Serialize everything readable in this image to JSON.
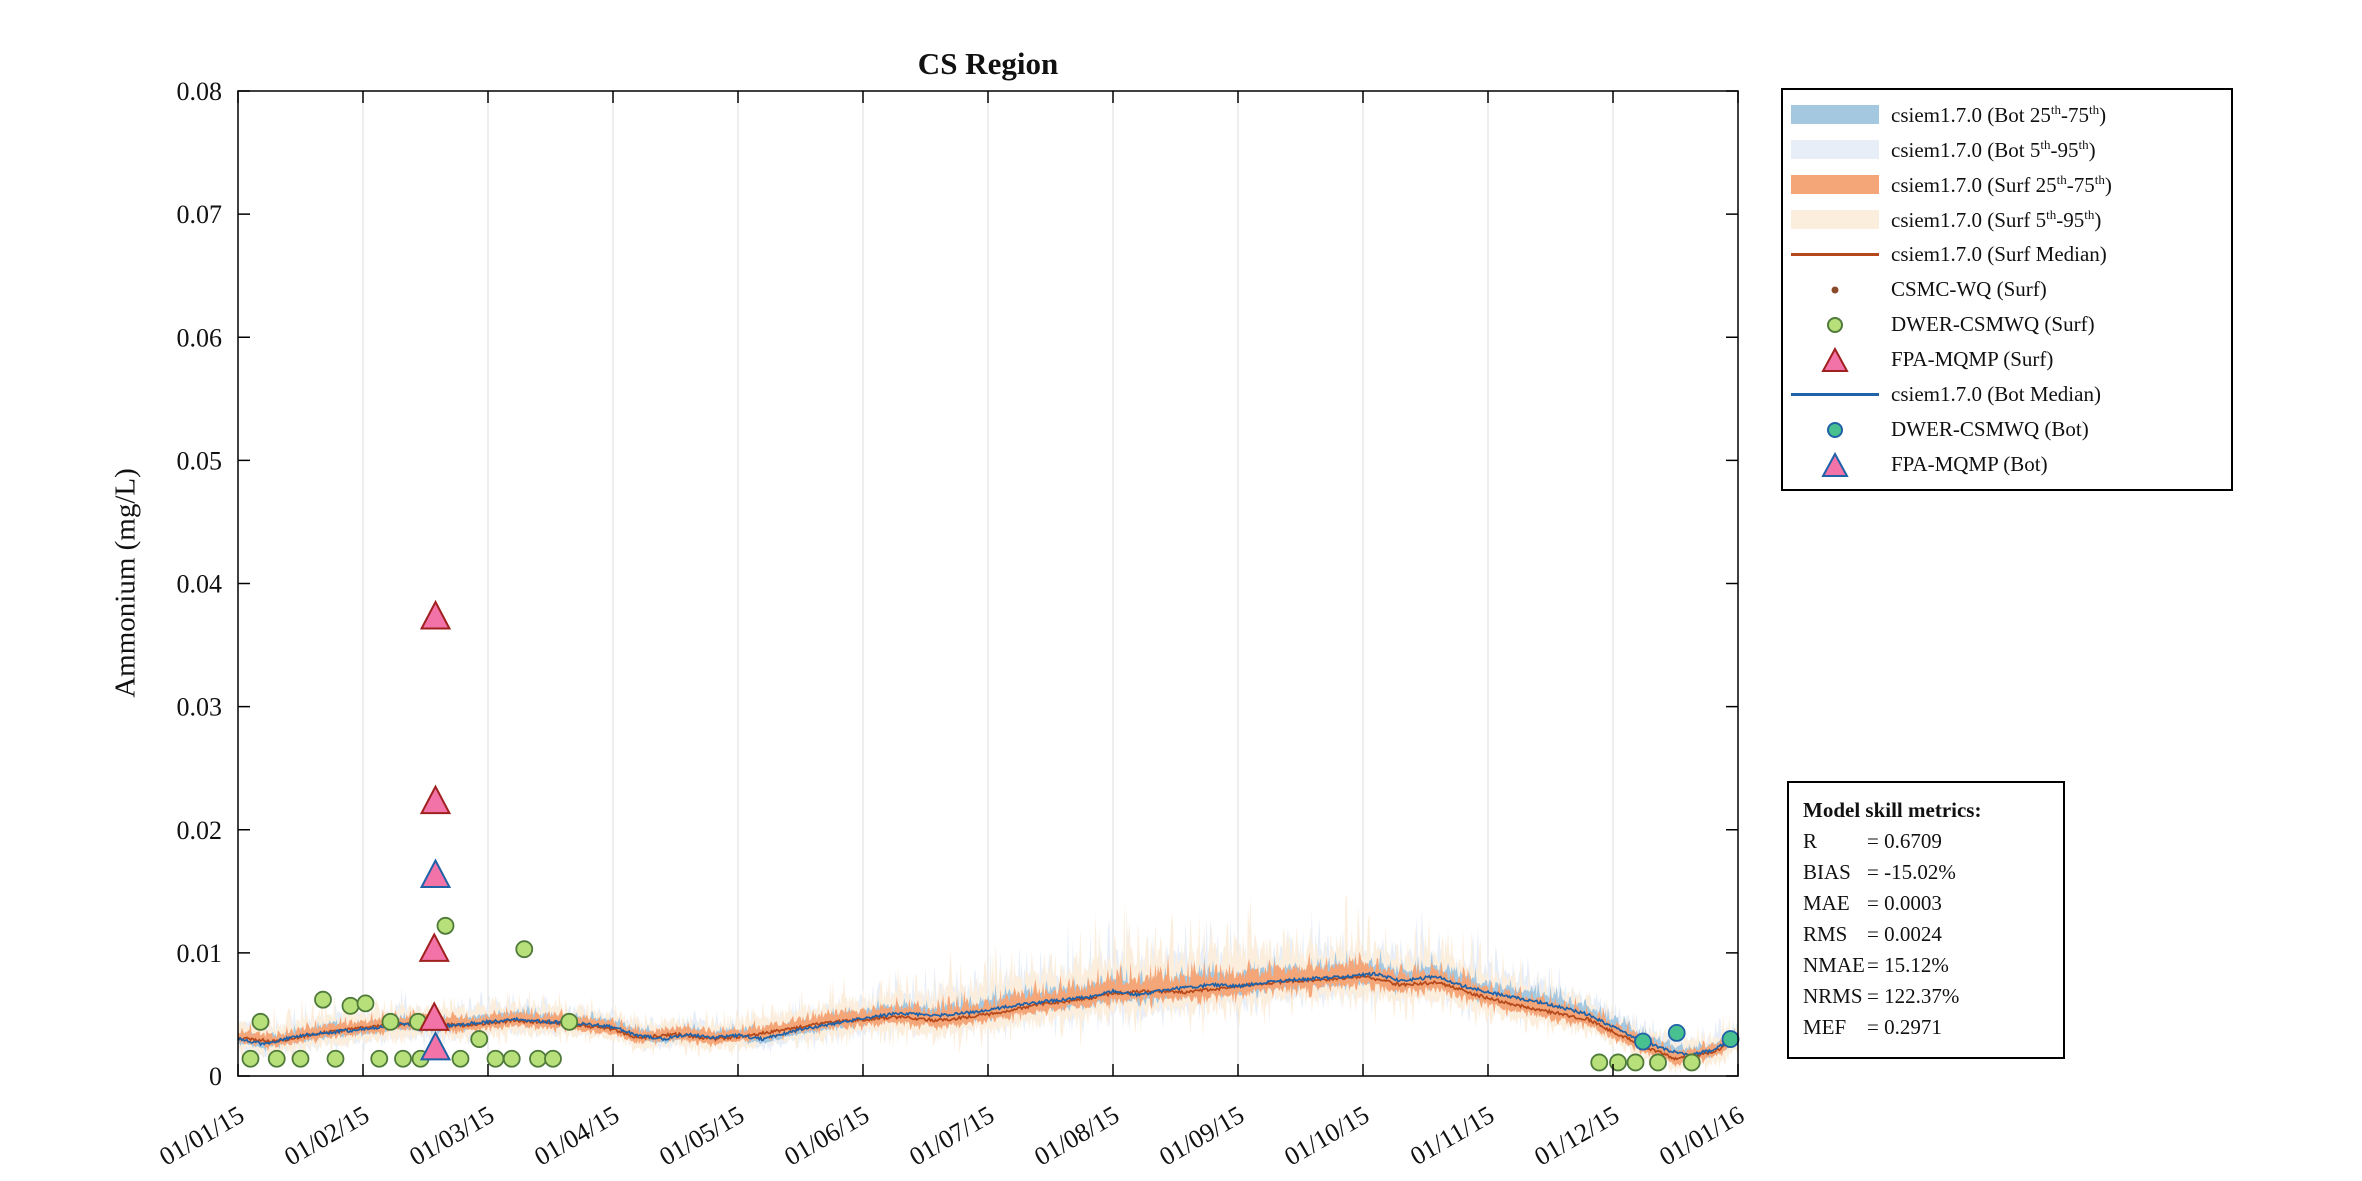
{
  "figure": {
    "title": "CS Region",
    "ylabel": "Ammonium (mg/L)"
  },
  "axes": {
    "ytick_labels": [
      "0",
      "0.01",
      "0.02",
      "0.03",
      "0.04",
      "0.05",
      "0.06",
      "0.07",
      "0.08"
    ],
    "ytick_values": [
      0,
      0.01,
      0.02,
      0.03,
      0.04,
      0.05,
      0.06,
      0.07,
      0.08
    ],
    "xtick_labels": [
      "01/01/15",
      "01/02/15",
      "01/03/15",
      "01/04/15",
      "01/05/15",
      "01/06/15",
      "01/07/15",
      "01/08/15",
      "01/09/15",
      "01/10/15",
      "01/11/15",
      "01/12/15",
      "01/01/16"
    ],
    "grid": "vertical-only",
    "grid_color": "#dcdcdc"
  },
  "legend": {
    "entries": [
      {
        "label": "csiem1.7.0 (Bot 25^th^-75^th^)",
        "swatch": "band",
        "color": "#a5c8e1"
      },
      {
        "label": "csiem1.7.0 (Bot 5^th^-95^th^)",
        "swatch": "band",
        "color": "#e7eef8"
      },
      {
        "label": "csiem1.7.0 (Surf 25^th^-75^th^)",
        "swatch": "band",
        "color": "#f4a678"
      },
      {
        "label": "csiem1.7.0 (Surf 5^th^-95^th^)",
        "swatch": "band",
        "color": "#fceedd"
      },
      {
        "label": "csiem1.7.0 (Surf Median)",
        "swatch": "line",
        "color": "#b5491c"
      },
      {
        "label": "CSMC-WQ (Surf)",
        "swatch": "dot",
        "fill": "#8b4a2a",
        "stroke": "#8b4a2a"
      },
      {
        "label": "DWER-CSMWQ (Surf)",
        "swatch": "circle",
        "fill": "#b7e07a",
        "stroke": "#4f7a3a"
      },
      {
        "label": "FPA-MQMP (Surf)",
        "swatch": "triangle",
        "fill": "#f273a8",
        "stroke": "#a02020"
      },
      {
        "label": "csiem1.7.0 (Bot Median)",
        "swatch": "line",
        "color": "#1f62a8"
      },
      {
        "label": "DWER-CSMWQ (Bot)",
        "swatch": "circle",
        "fill": "#49c08f",
        "stroke": "#1f62a8"
      },
      {
        "label": "FPA-MQMP (Bot)",
        "swatch": "triangle",
        "fill": "#f273a8",
        "stroke": "#1f62a8"
      }
    ]
  },
  "metrics": {
    "title": "Model skill metrics:",
    "lines": [
      {
        "label": "R",
        "value": "0.6709"
      },
      {
        "label": "BIAS",
        "value": "-15.02%"
      },
      {
        "label": "MAE",
        "value": "0.0003"
      },
      {
        "label": "RMS",
        "value": "0.0024"
      },
      {
        "label": "NMAE",
        "value": "15.12%"
      },
      {
        "label": "NRMS",
        "value": "122.37%"
      },
      {
        "label": "MEF",
        "value": "0.2971"
      }
    ]
  },
  "chart_data": {
    "type": "line",
    "title": "CS Region",
    "xlabel": "",
    "ylabel": "Ammonium (mg/L)",
    "ylim": [
      0,
      0.08
    ],
    "xlim_months": [
      0,
      12
    ],
    "x_unit": "months since 01/01/15",
    "xtick_labels": [
      "01/01/15",
      "01/02/15",
      "01/03/15",
      "01/04/15",
      "01/05/15",
      "01/06/15",
      "01/07/15",
      "01/08/15",
      "01/09/15",
      "01/10/15",
      "01/11/15",
      "01/12/15",
      "01/01/16"
    ],
    "legend_position": "outside-top-right",
    "series": [
      {
        "name": "csiem1.7.0 (Surf Median)",
        "key": "surf",
        "color": "#b5491c",
        "points": [
          [
            0,
            0.0031
          ],
          [
            0.3,
            0.0028
          ],
          [
            0.6,
            0.0034
          ],
          [
            1.0,
            0.0039
          ],
          [
            1.4,
            0.0043
          ],
          [
            1.8,
            0.0041
          ],
          [
            2.2,
            0.0045
          ],
          [
            2.6,
            0.0043
          ],
          [
            3.0,
            0.0038
          ],
          [
            3.2,
            0.0031
          ],
          [
            3.5,
            0.0034
          ],
          [
            3.8,
            0.003
          ],
          [
            4.1,
            0.0033
          ],
          [
            4.4,
            0.0038
          ],
          [
            4.7,
            0.0043
          ],
          [
            5.0,
            0.0046
          ],
          [
            5.3,
            0.0048
          ],
          [
            5.6,
            0.0045
          ],
          [
            6.0,
            0.005
          ],
          [
            6.4,
            0.0058
          ],
          [
            6.8,
            0.0063
          ],
          [
            7.0,
            0.0067
          ],
          [
            7.3,
            0.0069
          ],
          [
            7.6,
            0.0068
          ],
          [
            8.0,
            0.0073
          ],
          [
            8.4,
            0.0077
          ],
          [
            8.8,
            0.0079
          ],
          [
            9.0,
            0.0081
          ],
          [
            9.3,
            0.0074
          ],
          [
            9.6,
            0.0076
          ],
          [
            9.9,
            0.0066
          ],
          [
            10.2,
            0.0058
          ],
          [
            10.5,
            0.0052
          ],
          [
            10.8,
            0.0046
          ],
          [
            11.0,
            0.0036
          ],
          [
            11.3,
            0.0022
          ],
          [
            11.5,
            0.0014
          ],
          [
            11.8,
            0.0019
          ],
          [
            12.0,
            0.003
          ]
        ]
      },
      {
        "name": "csiem1.7.0 (Bot Median)",
        "key": "bot",
        "color": "#1f62a8",
        "points": [
          [
            0,
            0.003
          ],
          [
            0.2,
            0.0026
          ],
          [
            0.5,
            0.0033
          ],
          [
            0.8,
            0.0036
          ],
          [
            1.0,
            0.0038
          ],
          [
            1.3,
            0.0042
          ],
          [
            1.6,
            0.004
          ],
          [
            1.9,
            0.0043
          ],
          [
            2.2,
            0.0046
          ],
          [
            2.5,
            0.0044
          ],
          [
            2.8,
            0.0042
          ],
          [
            3.0,
            0.004
          ],
          [
            3.2,
            0.0033
          ],
          [
            3.4,
            0.003
          ],
          [
            3.6,
            0.0034
          ],
          [
            3.8,
            0.0031
          ],
          [
            4.0,
            0.0033
          ],
          [
            4.2,
            0.003
          ],
          [
            4.5,
            0.0038
          ],
          [
            4.8,
            0.0043
          ],
          [
            5.0,
            0.0047
          ],
          [
            5.3,
            0.0051
          ],
          [
            5.6,
            0.0049
          ],
          [
            5.9,
            0.0052
          ],
          [
            6.2,
            0.0057
          ],
          [
            6.5,
            0.0061
          ],
          [
            6.8,
            0.0064
          ],
          [
            7.0,
            0.0069
          ],
          [
            7.2,
            0.0066
          ],
          [
            7.5,
            0.0071
          ],
          [
            7.8,
            0.0074
          ],
          [
            8.0,
            0.0073
          ],
          [
            8.3,
            0.0077
          ],
          [
            8.6,
            0.0079
          ],
          [
            8.9,
            0.0081
          ],
          [
            9.1,
            0.0083
          ],
          [
            9.3,
            0.0077
          ],
          [
            9.6,
            0.0081
          ],
          [
            9.8,
            0.0073
          ],
          [
            10.0,
            0.0068
          ],
          [
            10.2,
            0.0064
          ],
          [
            10.5,
            0.0058
          ],
          [
            10.8,
            0.005
          ],
          [
            11.0,
            0.004
          ],
          [
            11.2,
            0.003
          ],
          [
            11.4,
            0.0022
          ],
          [
            11.6,
            0.0017
          ],
          [
            11.8,
            0.0021
          ],
          [
            12.0,
            0.0032
          ]
        ]
      }
    ],
    "bands": [
      {
        "name": "csiem1.7.0 (Bot 5th-95th)",
        "base": "bot",
        "color": "#e7eef8",
        "offsets": [
          [
            0,
            0.0012,
            0.0014,
            0.0007
          ],
          [
            1,
            0.0013,
            0.0016,
            0.0007
          ],
          [
            2,
            0.0013,
            0.0016,
            0.0007
          ],
          [
            3,
            0.001,
            0.0013,
            0.0005
          ],
          [
            4,
            0.001,
            0.0014,
            0.0007
          ],
          [
            5,
            0.0013,
            0.0018,
            0.0011
          ],
          [
            6,
            0.0016,
            0.0026,
            0.0016
          ],
          [
            7,
            0.0018,
            0.0032,
            0.002
          ],
          [
            8,
            0.0018,
            0.0032,
            0.002
          ],
          [
            9,
            0.0018,
            0.0028,
            0.0018
          ],
          [
            10,
            0.0016,
            0.0024,
            0.0014
          ],
          [
            11,
            0.0011,
            0.0014,
            0.0007
          ],
          [
            12,
            0.0011,
            0.0014,
            0.0007
          ]
        ]
      },
      {
        "name": "csiem1.7.0 (Surf 5th-95th)",
        "base": "surf",
        "color": "#fceedd",
        "offsets": [
          [
            0,
            0.0013,
            0.0016,
            0.0009
          ],
          [
            1,
            0.0014,
            0.0018,
            0.0009
          ],
          [
            2,
            0.0014,
            0.0018,
            0.0009
          ],
          [
            3,
            0.0011,
            0.0014,
            0.0006
          ],
          [
            4,
            0.0011,
            0.0016,
            0.0008
          ],
          [
            5,
            0.0014,
            0.0022,
            0.0013
          ],
          [
            6,
            0.0017,
            0.003,
            0.0019
          ],
          [
            7,
            0.0019,
            0.0038,
            0.0024
          ],
          [
            8,
            0.0019,
            0.0038,
            0.0024
          ],
          [
            9,
            0.0019,
            0.0032,
            0.0021
          ],
          [
            10,
            0.0017,
            0.0026,
            0.0016
          ],
          [
            11,
            0.0012,
            0.0015,
            0.0008
          ],
          [
            12,
            0.0012,
            0.0015,
            0.0008
          ]
        ]
      },
      {
        "name": "csiem1.7.0 (Bot 25th-75th)",
        "base": "bot",
        "color": "#a5c8e1",
        "offsets": [
          [
            0,
            0.0005,
            0.0006,
            0.0003
          ],
          [
            2,
            0.0005,
            0.0007,
            0.0003
          ],
          [
            4,
            0.0004,
            0.0006,
            0.0003
          ],
          [
            6,
            0.0007,
            0.0011,
            0.0006
          ],
          [
            8,
            0.0008,
            0.0013,
            0.0008
          ],
          [
            10,
            0.0007,
            0.001,
            0.0006
          ],
          [
            12,
            0.0005,
            0.0006,
            0.0003
          ]
        ]
      },
      {
        "name": "csiem1.7.0 (Surf 25th-75th)",
        "base": "surf",
        "color": "#f4a678",
        "offsets": [
          [
            0,
            0.0005,
            0.0007,
            0.0004
          ],
          [
            2,
            0.0006,
            0.0008,
            0.0004
          ],
          [
            4,
            0.0005,
            0.0007,
            0.0003
          ],
          [
            6,
            0.0007,
            0.0012,
            0.0007
          ],
          [
            8,
            0.0008,
            0.0015,
            0.0009
          ],
          [
            10,
            0.0007,
            0.0011,
            0.0006
          ],
          [
            12,
            0.0005,
            0.0007,
            0.0004
          ]
        ]
      }
    ],
    "scatter": [
      {
        "name": "DWER-CSMWQ (Surf)",
        "marker": "circle",
        "fill": "#b7e07a",
        "stroke": "#4f7a3a",
        "size": 8,
        "points": [
          [
            0.1,
            0.0014
          ],
          [
            0.18,
            0.0044
          ],
          [
            0.31,
            0.0014
          ],
          [
            0.5,
            0.0014
          ],
          [
            0.68,
            0.0062
          ],
          [
            0.78,
            0.0014
          ],
          [
            0.9,
            0.0057
          ],
          [
            1.02,
            0.0059
          ],
          [
            1.13,
            0.0014
          ],
          [
            1.22,
            0.0044
          ],
          [
            1.32,
            0.0014
          ],
          [
            1.44,
            0.0044
          ],
          [
            1.46,
            0.0014
          ],
          [
            1.66,
            0.0122
          ],
          [
            1.78,
            0.0014
          ],
          [
            1.93,
            0.003
          ],
          [
            2.06,
            0.0014
          ],
          [
            2.19,
            0.0014
          ],
          [
            2.29,
            0.0103
          ],
          [
            2.4,
            0.0014
          ],
          [
            2.52,
            0.0014
          ],
          [
            2.65,
            0.0044
          ],
          [
            10.89,
            0.0011
          ],
          [
            11.04,
            0.0011
          ],
          [
            11.18,
            0.0011
          ],
          [
            11.36,
            0.0011
          ],
          [
            11.63,
            0.0011
          ]
        ]
      },
      {
        "name": "DWER-CSMWQ (Bot)",
        "marker": "circle",
        "fill": "#49c08f",
        "stroke": "#1f62a8",
        "size": 8,
        "points": [
          [
            11.24,
            0.0028
          ],
          [
            11.51,
            0.0035
          ],
          [
            11.94,
            0.003
          ]
        ]
      },
      {
        "name": "FPA-MQMP (Surf)",
        "marker": "triangle",
        "fill": "#f273a8",
        "stroke": "#a02020",
        "size": 15,
        "points": [
          [
            1.58,
            0.0372
          ],
          [
            1.58,
            0.0222
          ],
          [
            1.57,
            0.0102
          ],
          [
            1.57,
            0.0046
          ]
        ]
      },
      {
        "name": "FPA-MQMP (Bot)",
        "marker": "triangle",
        "fill": "#f273a8",
        "stroke": "#1f62a8",
        "size": 15,
        "points": [
          [
            1.58,
            0.0162
          ],
          [
            1.58,
            0.0022
          ]
        ]
      },
      {
        "name": "CSMC-WQ (Surf)",
        "marker": "dot",
        "fill": "#8b4a2a",
        "stroke": "#8b4a2a",
        "size": 2.5,
        "points": []
      }
    ]
  }
}
